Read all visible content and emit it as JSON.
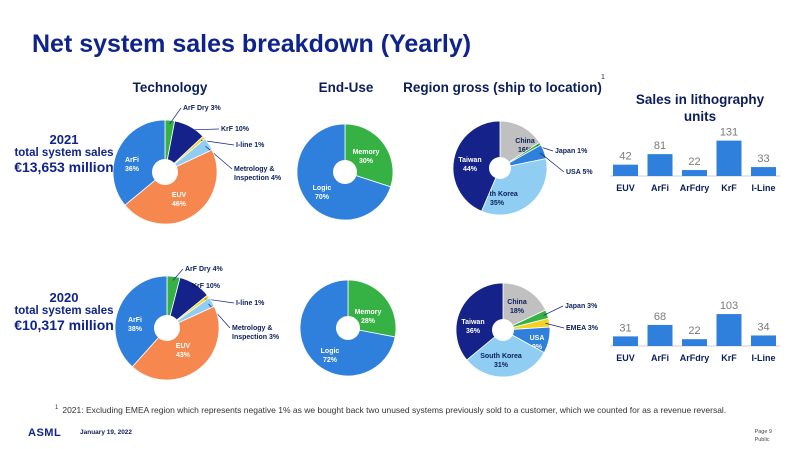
{
  "title": "Net system sales breakdown (Yearly)",
  "headers": {
    "technology": "Technology",
    "end_use": "End-Use",
    "region": "Region gross (ship to location)",
    "region_sup": "1",
    "litho": "Sales in lithography units"
  },
  "rows": [
    {
      "year": "2021",
      "label": "total system sales",
      "value": "€13,653 million"
    },
    {
      "year": "2020",
      "label": "total system sales",
      "value": "€10,317 million"
    }
  ],
  "footnote": {
    "marker": "1",
    "text": "2021: Excluding EMEA region which represents negative 1% as we bought back two unused systems previously sold to a customer, which we counted for as a revenue reversal."
  },
  "footer": {
    "logo": "ASML",
    "date": "January 19, 2022",
    "page": "Page 9",
    "classification": "Public"
  },
  "colors": {
    "dark_blue": "#14228a",
    "blue": "#2f7fdc",
    "orange": "#f5874f",
    "green": "#36b244",
    "light_blue": "#8fcdf3",
    "gray": "#c0c0c0",
    "yellow": "#f4d21f"
  },
  "chart_data": [
    {
      "type": "pie",
      "title": "Technology",
      "year": "2021",
      "slices": [
        {
          "name": "ArF Dry",
          "label": "ArF Dry 3%",
          "value": 3,
          "color": "#36b244",
          "callout": true
        },
        {
          "name": "KrF",
          "label": "KrF 10%",
          "value": 10,
          "color": "#14228a",
          "callout": true
        },
        {
          "name": "I-line",
          "label": "I-line 1%",
          "value": 1,
          "color": "#f4d21f",
          "callout": true
        },
        {
          "name": "Metrology & Inspection",
          "label": "Metrology & Inspection 4%",
          "value": 4,
          "color": "#8fcdf3",
          "callout": true
        },
        {
          "name": "EUV",
          "label": "EUV 46%",
          "value": 46,
          "color": "#f5874f",
          "callout": false
        },
        {
          "name": "ArFi",
          "label": "ArFi 36%",
          "value": 36,
          "color": "#2f7fdc",
          "callout": false
        }
      ]
    },
    {
      "type": "pie",
      "title": "End-Use",
      "year": "2021",
      "slices": [
        {
          "name": "Memory",
          "label": "Memory 30%",
          "value": 30,
          "color": "#36b244",
          "callout": false
        },
        {
          "name": "Logic",
          "label": "Logic 70%",
          "value": 70,
          "color": "#2f7fdc",
          "callout": false
        }
      ]
    },
    {
      "type": "pie",
      "title": "Region gross (ship to location)",
      "year": "2021",
      "slices": [
        {
          "name": "China",
          "label": "China 16%",
          "value": 16,
          "color": "#c0c0c0",
          "callout": false
        },
        {
          "name": "Japan",
          "label": "Japan 1%",
          "value": 1,
          "color": "#36b244",
          "callout": true
        },
        {
          "name": "USA",
          "label": "USA 5%",
          "value": 5,
          "color": "#2f7fdc",
          "callout": true
        },
        {
          "name": "South Korea",
          "label": "South Korea 35%",
          "value": 35,
          "color": "#8fcdf3",
          "callout": false
        },
        {
          "name": "Taiwan",
          "label": "Taiwan 44%",
          "value": 44,
          "color": "#14228a",
          "callout": false
        }
      ]
    },
    {
      "type": "bar",
      "title": "Sales in lithography units",
      "year": "2021",
      "categories": [
        "EUV",
        "ArFi",
        "ArFdry",
        "KrF",
        "I-Line"
      ],
      "values": [
        42,
        81,
        22,
        131,
        33
      ]
    },
    {
      "type": "pie",
      "title": "Technology",
      "year": "2020",
      "slices": [
        {
          "name": "ArF Dry",
          "label": "ArF Dry 4%",
          "value": 4,
          "color": "#36b244",
          "callout": true
        },
        {
          "name": "KrF",
          "label": "KrF 10%",
          "value": 10,
          "color": "#14228a",
          "callout": true
        },
        {
          "name": "I-line",
          "label": "I-line 1%",
          "value": 1,
          "color": "#f4d21f",
          "callout": true
        },
        {
          "name": "Metrology & Inspection",
          "label": "Metrology & Inspection 3%",
          "value": 3,
          "color": "#8fcdf3",
          "callout": true
        },
        {
          "name": "EUV",
          "label": "EUV 43%",
          "value": 43,
          "color": "#f5874f",
          "callout": false
        },
        {
          "name": "ArFi",
          "label": "ArFi 38%",
          "value": 38,
          "color": "#2f7fdc",
          "callout": false
        }
      ]
    },
    {
      "type": "pie",
      "title": "End-Use",
      "year": "2020",
      "slices": [
        {
          "name": "Memory",
          "label": "Memory 28%",
          "value": 28,
          "color": "#36b244",
          "callout": false
        },
        {
          "name": "Logic",
          "label": "Logic 72%",
          "value": 72,
          "color": "#2f7fdc",
          "callout": false
        }
      ]
    },
    {
      "type": "pie",
      "title": "Region gross (ship to location)",
      "year": "2020",
      "slices": [
        {
          "name": "China",
          "label": "China 18%",
          "value": 18,
          "color": "#c0c0c0",
          "callout": false
        },
        {
          "name": "Japan",
          "label": "Japan 3%",
          "value": 3,
          "color": "#36b244",
          "callout": true
        },
        {
          "name": "EMEA",
          "label": "EMEA 3%",
          "value": 3,
          "color": "#f4d21f",
          "callout": true
        },
        {
          "name": "USA",
          "label": "USA 9%",
          "value": 9,
          "color": "#2f7fdc",
          "callout": false
        },
        {
          "name": "South Korea",
          "label": "South Korea 31%",
          "value": 31,
          "color": "#8fcdf3",
          "callout": false
        },
        {
          "name": "Taiwan",
          "label": "Taiwan 36%",
          "value": 36,
          "color": "#14228a",
          "callout": false
        }
      ]
    },
    {
      "type": "bar",
      "title": "Sales in lithography units",
      "year": "2020",
      "categories": [
        "EUV",
        "ArFi",
        "ArFdry",
        "KrF",
        "I-Line"
      ],
      "values": [
        31,
        68,
        22,
        103,
        34
      ]
    }
  ]
}
